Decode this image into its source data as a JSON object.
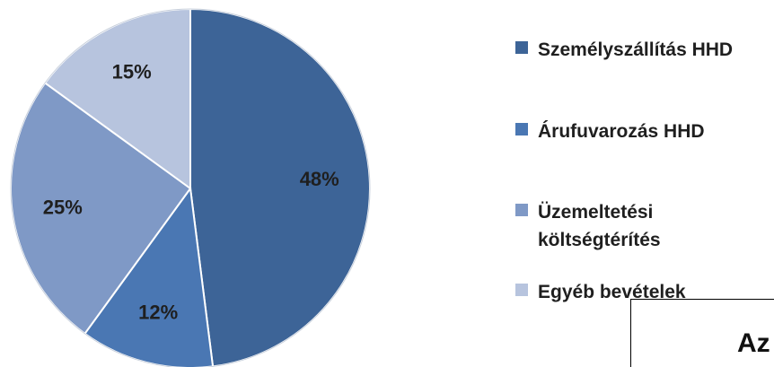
{
  "chart_data": {
    "type": "pie",
    "title": "",
    "categories": [
      "Személyszállítás HHD",
      "Árufuvarozás HHD",
      "Üzemeltetési költségtérítés",
      "Egyéb bevételek"
    ],
    "values": [
      48,
      12,
      25,
      15
    ],
    "labels": [
      "48%",
      "12%",
      "25%",
      "15%"
    ],
    "colors": [
      "#3D6497",
      "#4A77B3",
      "#7F99C6",
      "#B7C4DE"
    ],
    "legend_position": "right",
    "start_angle_deg": 0,
    "direction": "clockwise"
  },
  "legend": {
    "items": [
      {
        "label": "Személyszállítás HHD",
        "color": "#3D6497"
      },
      {
        "label": "Árufuvarozás HHD",
        "color": "#4A77B3"
      },
      {
        "label": "Üzemeltetési\nköltségtérítés",
        "color": "#7F99C6"
      },
      {
        "label": "Egyéb bevételek",
        "color": "#B7C4DE"
      }
    ]
  },
  "overlay_box": {
    "text": "Az"
  }
}
